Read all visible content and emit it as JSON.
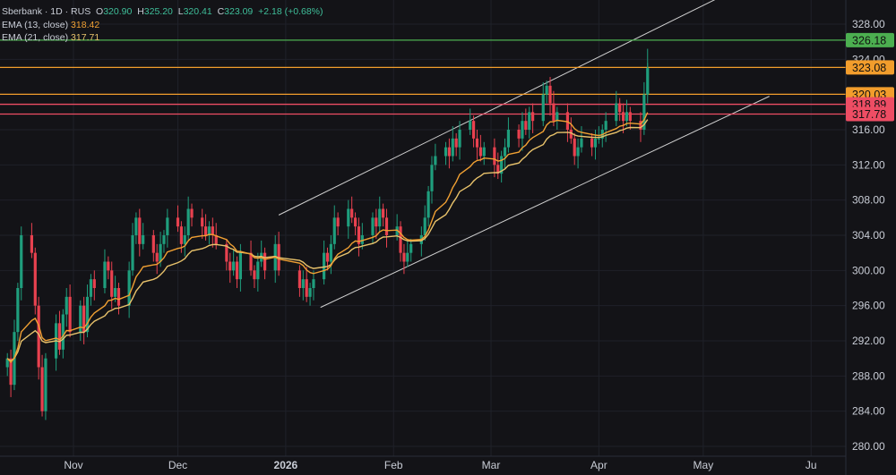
{
  "legend": {
    "symbol": "Sberbank · 1D · RUS",
    "open_label": "O",
    "open": "320.90",
    "high_label": "H",
    "high": "325.20",
    "low_label": "L",
    "low": "320.41",
    "close_label": "C",
    "close": "323.09",
    "change": "+2.18 (+0.68%)",
    "ema13_label": "EMA (13, close)",
    "ema13_value": "318.42",
    "ema21_label": "EMA (21, close)",
    "ema21_value": "317.71"
  },
  "colors": {
    "background": "#131317",
    "up": "#1f9e7d",
    "down": "#e8414f",
    "ema13": "#f0a033",
    "ema21": "#e8c26b",
    "green_level": "#4caf50",
    "orange_level": "#f29d2c",
    "red_level": "#ee4d64",
    "channel": "#d0d0d0"
  },
  "chart_data": {
    "type": "candlestick",
    "y_ticks": [
      "280.00",
      "284.00",
      "288.00",
      "292.00",
      "296.00",
      "300.00",
      "304.00",
      "308.00",
      "312.00",
      "316.00",
      "320.00",
      "324.00",
      "328.00"
    ],
    "x_ticks": [
      "Nov",
      "Dec",
      "2026",
      "Feb",
      "Mar",
      "Apr",
      "May",
      "Ju"
    ],
    "ylim": [
      279,
      332
    ],
    "price_levels": [
      {
        "value": 326.18,
        "label": "326.18",
        "color": "green"
      },
      {
        "value": 323.08,
        "label": "323.08",
        "color": "orange"
      },
      {
        "value": 320.03,
        "label": "320.03",
        "color": "orange"
      },
      {
        "value": 318.89,
        "label": "318.89",
        "color": "red"
      },
      {
        "value": 317.78,
        "label": "317.78",
        "color": "red"
      }
    ],
    "channel": {
      "upper": [
        [
          "2025-12-30",
          306.3
        ],
        [
          "2026-05-08",
          331.5
        ]
      ],
      "lower": [
        [
          "2026-01-11",
          295.8
        ],
        [
          "2026-05-20",
          319.8
        ]
      ]
    },
    "series": [
      {
        "name": "Sberbank",
        "kind": "close",
        "points": [
          [
            "2025-10-13",
            290
          ],
          [
            "2025-10-14",
            287
          ],
          [
            "2025-10-15",
            293
          ],
          [
            "2025-10-16",
            298
          ],
          [
            "2025-10-17",
            304
          ],
          [
            "2025-10-20",
            302
          ],
          [
            "2025-10-21",
            296
          ],
          [
            "2025-10-22",
            289
          ],
          [
            "2025-10-23",
            284
          ],
          [
            "2025-10-24",
            290
          ],
          [
            "2025-10-27",
            294
          ],
          [
            "2025-10-28",
            291
          ],
          [
            "2025-10-29",
            295
          ],
          [
            "2025-10-30",
            297
          ],
          [
            "2025-10-31",
            293
          ],
          [
            "2025-11-03",
            296
          ],
          [
            "2025-11-04",
            293
          ],
          [
            "2025-11-05",
            297
          ],
          [
            "2025-11-06",
            299
          ],
          [
            "2025-11-07",
            298
          ],
          [
            "2025-11-10",
            301
          ],
          [
            "2025-11-11",
            300
          ],
          [
            "2025-11-12",
            297
          ],
          [
            "2025-11-13",
            298
          ],
          [
            "2025-11-14",
            296
          ],
          [
            "2025-11-17",
            300
          ],
          [
            "2025-11-18",
            304
          ],
          [
            "2025-11-19",
            306
          ],
          [
            "2025-11-20",
            303
          ],
          [
            "2025-11-21",
            304
          ],
          [
            "2025-11-24",
            302
          ],
          [
            "2025-11-25",
            301
          ],
          [
            "2025-11-26",
            303
          ],
          [
            "2025-11-27",
            304
          ],
          [
            "2025-11-28",
            306
          ],
          [
            "2025-12-01",
            305
          ],
          [
            "2025-12-02",
            303
          ],
          [
            "2025-12-03",
            304
          ],
          [
            "2025-12-04",
            307
          ],
          [
            "2025-12-05",
            306
          ],
          [
            "2025-12-08",
            305
          ],
          [
            "2025-12-09",
            304
          ],
          [
            "2025-12-10",
            305
          ],
          [
            "2025-12-11",
            304
          ],
          [
            "2025-12-12",
            303
          ],
          [
            "2025-12-15",
            301
          ],
          [
            "2025-12-16",
            300
          ],
          [
            "2025-12-17",
            301
          ],
          [
            "2025-12-18",
            299
          ],
          [
            "2025-12-19",
            302
          ],
          [
            "2025-12-22",
            300
          ],
          [
            "2025-12-23",
            299
          ],
          [
            "2025-12-24",
            301
          ],
          [
            "2025-12-25",
            302
          ],
          [
            "2025-12-26",
            300
          ],
          [
            "2025-12-29",
            303
          ],
          [
            "2025-12-30",
            300
          ],
          [
            "2026-01-05",
            298
          ],
          [
            "2026-01-06",
            299
          ],
          [
            "2026-01-07",
            297
          ],
          [
            "2026-01-08",
            298
          ],
          [
            "2026-01-09",
            299
          ],
          [
            "2026-01-12",
            302
          ],
          [
            "2026-01-13",
            301
          ],
          [
            "2026-01-14",
            303
          ],
          [
            "2026-01-15",
            306
          ],
          [
            "2026-01-16",
            305
          ],
          [
            "2026-01-19",
            307
          ],
          [
            "2026-01-20",
            306
          ],
          [
            "2026-01-21",
            305
          ],
          [
            "2026-01-22",
            303
          ],
          [
            "2026-01-23",
            304
          ],
          [
            "2026-01-26",
            306
          ],
          [
            "2026-01-27",
            305
          ],
          [
            "2026-01-28",
            307
          ],
          [
            "2026-01-29",
            306
          ],
          [
            "2026-01-30",
            304
          ],
          [
            "2026-02-02",
            305
          ],
          [
            "2026-02-03",
            302
          ],
          [
            "2026-02-04",
            301
          ],
          [
            "2026-02-05",
            302
          ],
          [
            "2026-02-06",
            303
          ],
          [
            "2026-02-09",
            304
          ],
          [
            "2026-02-10",
            306
          ],
          [
            "2026-02-11",
            309
          ],
          [
            "2026-02-12",
            312
          ],
          [
            "2026-02-13",
            313
          ],
          [
            "2026-02-16",
            314
          ],
          [
            "2026-02-17",
            313
          ],
          [
            "2026-02-18",
            315
          ],
          [
            "2026-02-19",
            314
          ],
          [
            "2026-02-20",
            316
          ],
          [
            "2026-02-23",
            317
          ],
          [
            "2026-02-24",
            315
          ],
          [
            "2026-02-25",
            314
          ],
          [
            "2026-02-26",
            313
          ],
          [
            "2026-02-27",
            314
          ],
          [
            "2026-03-02",
            312
          ],
          [
            "2026-03-03",
            311
          ],
          [
            "2026-03-04",
            313
          ],
          [
            "2026-03-05",
            314
          ],
          [
            "2026-03-06",
            316
          ],
          [
            "2026-03-09",
            315
          ],
          [
            "2026-03-10",
            317
          ],
          [
            "2026-03-11",
            316
          ],
          [
            "2026-03-12",
            318
          ],
          [
            "2026-03-13",
            317
          ],
          [
            "2026-03-16",
            320
          ],
          [
            "2026-03-17",
            321
          ],
          [
            "2026-03-18",
            319
          ],
          [
            "2026-03-19",
            317
          ],
          [
            "2026-03-20",
            318
          ],
          [
            "2026-03-23",
            316
          ],
          [
            "2026-03-24",
            315
          ],
          [
            "2026-03-25",
            313
          ],
          [
            "2026-03-26",
            314
          ],
          [
            "2026-03-27",
            315
          ],
          [
            "2026-03-30",
            314
          ],
          [
            "2026-03-31",
            315
          ],
          [
            "2026-04-01",
            315
          ],
          [
            "2026-04-02",
            316
          ],
          [
            "2026-04-03",
            317
          ],
          [
            "2026-04-06",
            319
          ],
          [
            "2026-04-07",
            318
          ],
          [
            "2026-04-08",
            317
          ],
          [
            "2026-04-09",
            318
          ],
          [
            "2026-04-10",
            317
          ],
          [
            "2026-04-13",
            316
          ],
          [
            "2026-04-14",
            320
          ],
          [
            "2026-04-15",
            323
          ]
        ]
      },
      {
        "name": "EMA (13, close)",
        "kind": "ema",
        "period": 13
      },
      {
        "name": "EMA (21, close)",
        "kind": "ema",
        "period": 21
      }
    ]
  }
}
